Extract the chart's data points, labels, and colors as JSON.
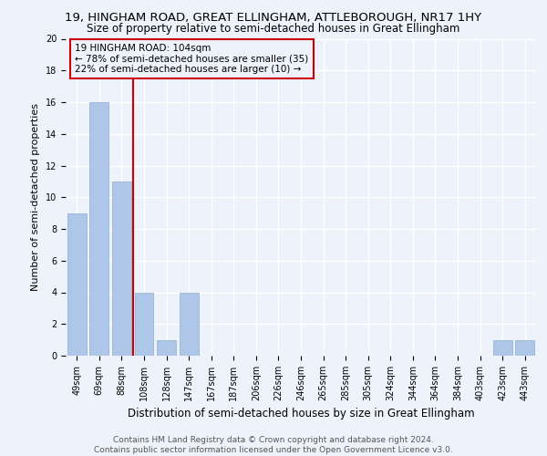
{
  "title1": "19, HINGHAM ROAD, GREAT ELLINGHAM, ATTLEBOROUGH, NR17 1HY",
  "title2": "Size of property relative to semi-detached houses in Great Ellingham",
  "xlabel": "Distribution of semi-detached houses by size in Great Ellingham",
  "ylabel": "Number of semi-detached properties",
  "footnote": "Contains HM Land Registry data © Crown copyright and database right 2024.\nContains public sector information licensed under the Open Government Licence v3.0.",
  "categories": [
    "49sqm",
    "69sqm",
    "88sqm",
    "108sqm",
    "128sqm",
    "147sqm",
    "167sqm",
    "187sqm",
    "206sqm",
    "226sqm",
    "246sqm",
    "265sqm",
    "285sqm",
    "305sqm",
    "324sqm",
    "344sqm",
    "364sqm",
    "384sqm",
    "403sqm",
    "423sqm",
    "443sqm"
  ],
  "values": [
    9,
    16,
    11,
    4,
    1,
    4,
    0,
    0,
    0,
    0,
    0,
    0,
    0,
    0,
    0,
    0,
    0,
    0,
    0,
    1,
    1
  ],
  "bar_color": "#aec6e8",
  "annotation_box_text": "19 HINGHAM ROAD: 104sqm\n← 78% of semi-detached houses are smaller (35)\n22% of semi-detached houses are larger (10) →",
  "ylim": [
    0,
    20
  ],
  "yticks": [
    0,
    2,
    4,
    6,
    8,
    10,
    12,
    14,
    16,
    18,
    20
  ],
  "bg_color": "#eef2fb",
  "grid_color": "#ffffff",
  "subject_line_color": "#cc0000",
  "box_edge_color": "#cc0000",
  "title1_fontsize": 9.5,
  "title2_fontsize": 8.5,
  "xlabel_fontsize": 8.5,
  "ylabel_fontsize": 8,
  "tick_fontsize": 7,
  "footnote_fontsize": 6.5,
  "annot_fontsize": 7.5
}
